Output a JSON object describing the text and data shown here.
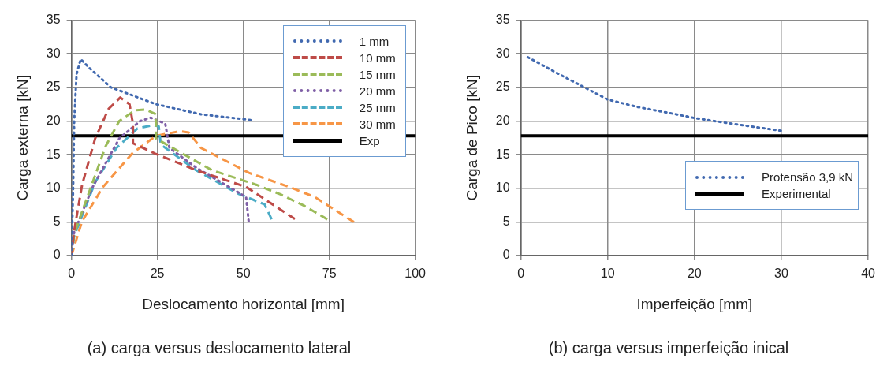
{
  "chart_data": [
    {
      "type": "line",
      "xlabel": "Deslocamento horizontal [mm]",
      "ylabel": "Carga externa [kN]",
      "xlim": [
        0,
        100
      ],
      "xticks": [
        0,
        25,
        50,
        75,
        100
      ],
      "ylim": [
        0,
        35
      ],
      "yticks": [
        0,
        5,
        10,
        15,
        20,
        25,
        30,
        35
      ],
      "grid": true,
      "legend": "top right",
      "annotations": [
        "(a) carga versus deslocamento lateral"
      ],
      "series": [
        {
          "name": "1 mm",
          "color": "#4169b0",
          "line_style": "dotted",
          "x": [
            0,
            0.5,
            0.8,
            1.5,
            2.7,
            5,
            11.5,
            24.6,
            37.7,
            53.1
          ],
          "values": [
            0,
            10,
            20,
            27,
            29.2,
            28,
            25,
            22.5,
            21,
            20.1
          ]
        },
        {
          "name": "10 mm",
          "color": "#be4b48",
          "line_style": "dashed",
          "x": [
            0,
            0.8,
            3.1,
            6.9,
            10.8,
            14.2,
            16.9,
            17.9,
            17.9,
            24.6,
            36.2,
            50.8,
            65.4
          ],
          "values": [
            0,
            3.7,
            10.5,
            17.4,
            21.8,
            23.5,
            22.5,
            19.6,
            16.7,
            15.1,
            12.7,
            10.2,
            5.3
          ]
        },
        {
          "name": "15 mm",
          "color": "#9bbb59",
          "line_style": "dashed",
          "x": [
            0,
            0.8,
            5.4,
            10,
            13.9,
            18.5,
            21.6,
            24.6,
            24.6,
            40.8,
            53.9,
            60.8,
            67.7,
            74.7
          ],
          "values": [
            0,
            3.2,
            9.8,
            16.3,
            20,
            21.6,
            21.7,
            21,
            17.4,
            12.7,
            10.5,
            9.1,
            7.4,
            5.3
          ]
        },
        {
          "name": "20 mm",
          "color": "#7f5fa6",
          "line_style": "dotted",
          "x": [
            0,
            0.8,
            6.2,
            13.9,
            20,
            23.1,
            27.3,
            28.5,
            36.2,
            48.5,
            50.8,
            51.6
          ],
          "values": [
            0,
            3.5,
            10.2,
            17.4,
            20,
            20.5,
            19.6,
            16,
            13.1,
            9.4,
            8.7,
            4.9
          ]
        },
        {
          "name": "25 mm",
          "color": "#4bacc6",
          "line_style": "dashed",
          "x": [
            0,
            0.8,
            6.9,
            13.1,
            19.2,
            23.9,
            25.4,
            26,
            36.2,
            48.5,
            56.2,
            58.5
          ],
          "values": [
            0,
            2.9,
            10.9,
            16,
            18.9,
            19.4,
            19.2,
            16.5,
            12.7,
            9.2,
            7.6,
            5.1
          ]
        },
        {
          "name": "30 mm",
          "color": "#f79646",
          "line_style": "dashed",
          "x": [
            0,
            3.1,
            9.2,
            17.7,
            24.6,
            31.6,
            34.1,
            37.7,
            51.6,
            63.9,
            70.8,
            82.4
          ],
          "values": [
            0,
            5.1,
            10.2,
            15.2,
            17.8,
            18.5,
            18.3,
            16,
            12.3,
            10.1,
            8.7,
            4.9
          ]
        },
        {
          "name": "Exp",
          "color": "#000000",
          "line_style": "solid",
          "x": [
            0,
            100
          ],
          "values": [
            17.8,
            17.8
          ]
        }
      ]
    },
    {
      "type": "line",
      "xlabel": "Imperfeição [mm]",
      "ylabel": "Carga de Pico [kN]",
      "xlim": [
        0,
        40
      ],
      "xticks": [
        0,
        10,
        20,
        30,
        40
      ],
      "ylim": [
        0,
        35
      ],
      "yticks": [
        0,
        5,
        10,
        15,
        20,
        25,
        30,
        35
      ],
      "grid": true,
      "legend": "bottom right",
      "annotations": [
        "(b) carga versus imperfeição inical"
      ],
      "series": [
        {
          "name": "Protensão 3,9 kN",
          "color": "#4169b0",
          "line_style": "dotted",
          "x": [
            0.8,
            4.5,
            6.9,
            10,
            13.4,
            17.9,
            20.2,
            24.4,
            30.2
          ],
          "values": [
            29.5,
            26.9,
            25.3,
            23.2,
            22.1,
            21,
            20.4,
            19.6,
            18.5
          ]
        },
        {
          "name": "Experimental",
          "color": "#000000",
          "line_style": "solid",
          "x": [
            0,
            40
          ],
          "values": [
            17.8,
            17.8
          ]
        }
      ]
    }
  ]
}
